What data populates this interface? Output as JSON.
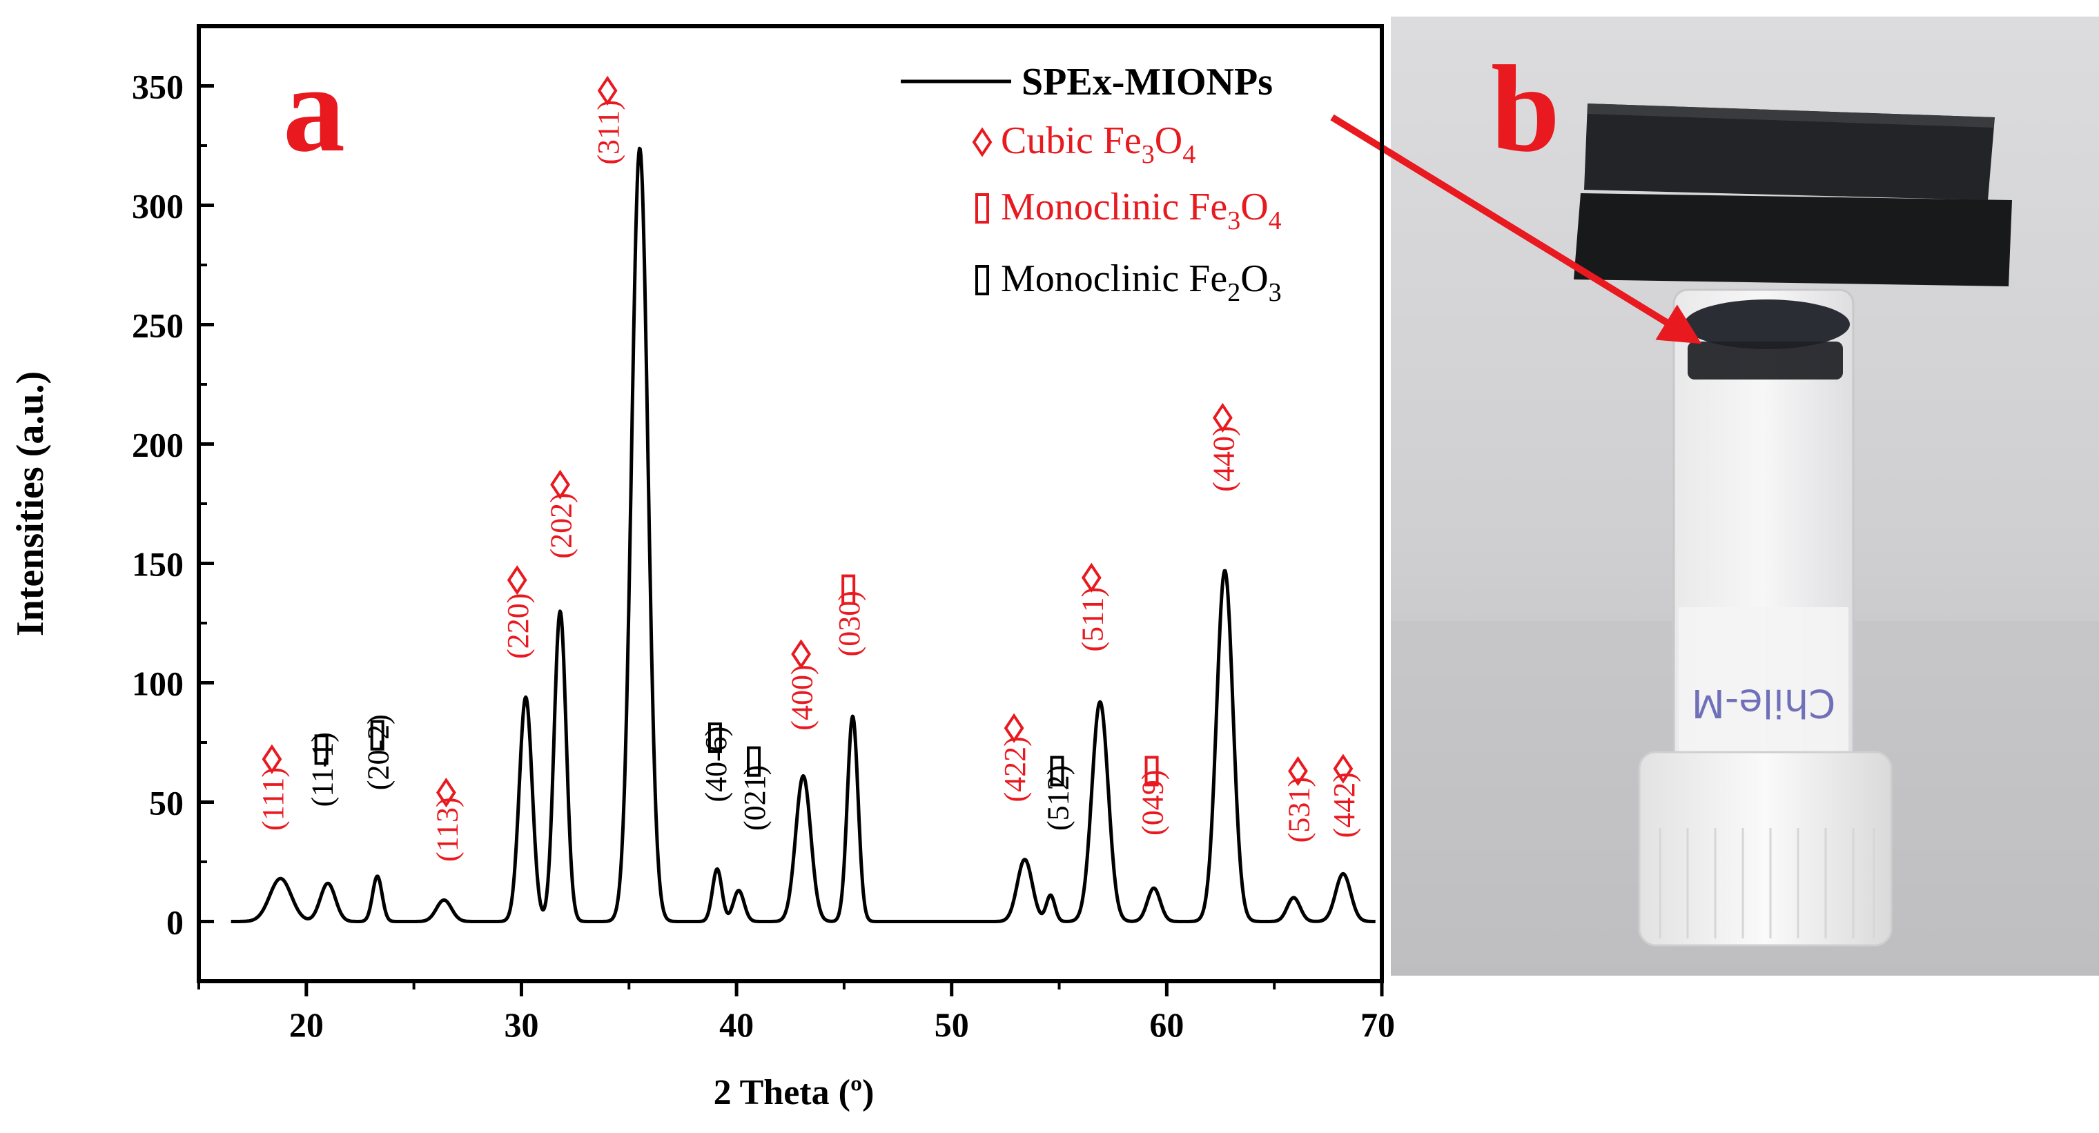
{
  "chart_data": {
    "type": "line",
    "panel_label": "a",
    "title": "",
    "xlabel": "2 Theta (º)",
    "ylabel": "Intensities (a.u.)",
    "xlim": [
      15,
      70
    ],
    "ylim": [
      -25,
      375
    ],
    "x_ticks": [
      20,
      30,
      40,
      50,
      60,
      70
    ],
    "y_ticks": [
      0,
      50,
      100,
      150,
      200,
      250,
      300,
      350
    ],
    "grid": false,
    "legend_position": "top-right",
    "series": [
      {
        "name": "SPEx-MIONPs",
        "color": "#000000",
        "baseline": 0,
        "peaks": [
          {
            "x": 18.8,
            "y": 18,
            "w": 0.5
          },
          {
            "x": 21.0,
            "y": 16,
            "w": 0.35
          },
          {
            "x": 23.3,
            "y": 19,
            "w": 0.22
          },
          {
            "x": 26.4,
            "y": 9,
            "w": 0.35
          },
          {
            "x": 30.2,
            "y": 94,
            "w": 0.3
          },
          {
            "x": 31.8,
            "y": 130,
            "w": 0.28
          },
          {
            "x": 35.5,
            "y": 324,
            "w": 0.38
          },
          {
            "x": 39.1,
            "y": 22,
            "w": 0.22
          },
          {
            "x": 40.1,
            "y": 13,
            "w": 0.25
          },
          {
            "x": 43.1,
            "y": 61,
            "w": 0.35
          },
          {
            "x": 45.4,
            "y": 86,
            "w": 0.25
          },
          {
            "x": 53.4,
            "y": 26,
            "w": 0.35
          },
          {
            "x": 54.6,
            "y": 11,
            "w": 0.2
          },
          {
            "x": 56.9,
            "y": 92,
            "w": 0.38
          },
          {
            "x": 59.4,
            "y": 14,
            "w": 0.3
          },
          {
            "x": 62.7,
            "y": 147,
            "w": 0.38
          },
          {
            "x": 65.9,
            "y": 10,
            "w": 0.3
          },
          {
            "x": 68.2,
            "y": 20,
            "w": 0.35
          }
        ]
      }
    ],
    "annotations": [
      {
        "label": "(111)",
        "x": 18.4,
        "y": 38,
        "color": "#e8191f",
        "marker": "diamond",
        "marker_y": 68
      },
      {
        "label": "(11-1)",
        "x": 20.7,
        "y": 48,
        "color": "#000000",
        "marker": "rect",
        "marker_y": 72
      },
      {
        "label": "(20-2)",
        "x": 23.3,
        "y": 55,
        "color": "#000000",
        "marker": "rect",
        "marker_y": 78
      },
      {
        "label": "(113)",
        "x": 26.5,
        "y": 25,
        "color": "#e8191f",
        "marker": "diamond",
        "marker_y": 54
      },
      {
        "label": "(220)",
        "x": 29.8,
        "y": 110,
        "color": "#e8191f",
        "marker": "diamond",
        "marker_y": 143
      },
      {
        "label": "(202)",
        "x": 31.8,
        "y": 152,
        "color": "#e8191f",
        "marker": "diamond",
        "marker_y": 183
      },
      {
        "label": "(311)",
        "x": 34.0,
        "y": 317,
        "color": "#e8191f",
        "marker": "diamond",
        "marker_y": 348
      },
      {
        "label": "(40-6)",
        "x": 39.0,
        "y": 50,
        "color": "#000000",
        "marker": "rect",
        "marker_y": 77
      },
      {
        "label": "(021)",
        "x": 40.8,
        "y": 38,
        "color": "#000000",
        "marker": "rect",
        "marker_y": 67
      },
      {
        "label": "(400)",
        "x": 43.0,
        "y": 80,
        "color": "#e8191f",
        "marker": "diamond",
        "marker_y": 112
      },
      {
        "label": "(030)",
        "x": 45.2,
        "y": 111,
        "color": "#e8191f",
        "marker": "rect",
        "marker_y": 139
      },
      {
        "label": "(422)",
        "x": 52.9,
        "y": 50,
        "color": "#e8191f",
        "marker": "diamond",
        "marker_y": 81
      },
      {
        "label": "(512)",
        "x": 54.9,
        "y": 38,
        "color": "#000000",
        "marker": "rect",
        "marker_y": 63
      },
      {
        "label": "(511)",
        "x": 56.5,
        "y": 113,
        "color": "#e8191f",
        "marker": "diamond",
        "marker_y": 144
      },
      {
        "label": "(049)",
        "x": 59.3,
        "y": 36,
        "color": "#e8191f",
        "marker": "rect",
        "marker_y": 63
      },
      {
        "label": "(440)",
        "x": 62.6,
        "y": 180,
        "color": "#e8191f",
        "marker": "diamond",
        "marker_y": 211
      },
      {
        "label": "(531)",
        "x": 66.1,
        "y": 33,
        "color": "#e8191f",
        "marker": "diamond",
        "marker_y": 63
      },
      {
        "label": "(442)",
        "x": 68.2,
        "y": 35,
        "color": "#e8191f",
        "marker": "diamond",
        "marker_y": 64
      }
    ],
    "phase_legend": [
      {
        "label": "Cubic Fe",
        "sub1": "3",
        "mid": "O",
        "sub2": "4",
        "color": "#e8191f",
        "marker": "diamond"
      },
      {
        "label": "Monoclinic Fe",
        "sub1": "3",
        "mid": "O",
        "sub2": "4",
        "color": "#e8191f",
        "marker": "rect"
      },
      {
        "label": "Monoclinic Fe",
        "sub1": "2",
        "mid": "O",
        "sub2": "3",
        "color": "#000000",
        "marker": "rect"
      }
    ]
  },
  "photo": {
    "panel_label": "b",
    "vial_text": "Chile-M"
  },
  "colors": {
    "accent_red": "#e8191f",
    "axis": "#000000"
  }
}
